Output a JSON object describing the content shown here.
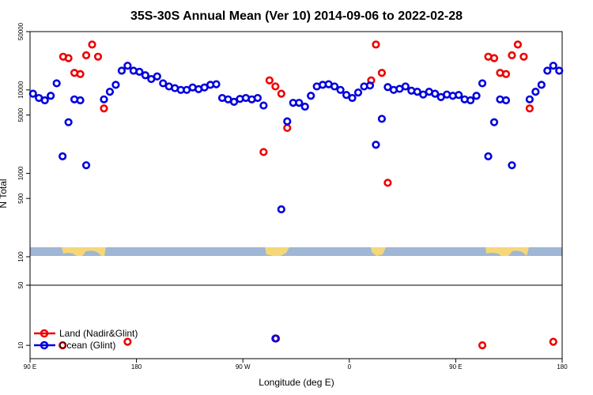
{
  "chart_data": {
    "type": "scatter",
    "title": "35S-30S Annual Mean (Ver 10)   2014-09-06 to 2022-02-28",
    "xlabel": "Longitude (deg E)",
    "ylabel": "N Total",
    "x_ticks": [
      {
        "value": 90,
        "label": "90 E"
      },
      {
        "value": 180,
        "label": "180"
      },
      {
        "value": 270,
        "label": "90 W"
      },
      {
        "value": 360,
        "label": "0"
      },
      {
        "value": 450,
        "label": "90 E"
      },
      {
        "value": 540,
        "label": "180"
      }
    ],
    "xlim": [
      90,
      540
    ],
    "upper_panel": {
      "scale": "log",
      "ylim": [
        100,
        50000
      ],
      "y_ticks": [
        {
          "value": 100,
          "label": "100"
        },
        {
          "value": 500,
          "label": "500"
        },
        {
          "value": 1000,
          "label": "1000"
        },
        {
          "value": 5000,
          "label": "5000"
        },
        {
          "value": 10000,
          "label": "10000"
        },
        {
          "value": 50000,
          "label": "50000"
        }
      ]
    },
    "lower_panel": {
      "scale": "log",
      "ylim": [
        7,
        50
      ],
      "y_ticks": [
        {
          "value": 10,
          "label": "10"
        },
        {
          "value": 50,
          "label": "50"
        }
      ]
    },
    "legend": {
      "position": "bottom-left"
    },
    "colors": {
      "land": "#ee0000",
      "ocean": "#0000dd",
      "land_band": "#f5d77a",
      "ocean_band": "#9fb6d4"
    },
    "series": [
      {
        "name": "Land (Nadir&Glint)",
        "color": "#ee0000",
        "points": [
          [
            117.5,
            10
          ],
          [
            118,
            25000
          ],
          [
            122.5,
            24000
          ],
          [
            127.5,
            16000
          ],
          [
            132.5,
            15500
          ],
          [
            137.5,
            26000
          ],
          [
            142.5,
            35000
          ],
          [
            147.5,
            25000
          ],
          [
            152.5,
            6000
          ],
          [
            172.5,
            11
          ],
          [
            287.5,
            1800
          ],
          [
            292.5,
            13000
          ],
          [
            297.5,
            11000
          ],
          [
            302.5,
            9000
          ],
          [
            307.5,
            3500
          ],
          [
            298,
            12
          ],
          [
            378.5,
            13000
          ],
          [
            382.5,
            35000
          ],
          [
            387.5,
            16000
          ],
          [
            392.5,
            770
          ],
          [
            472.5,
            10
          ],
          [
            477.5,
            25000
          ],
          [
            482.5,
            24000
          ],
          [
            487.5,
            16000
          ],
          [
            492.5,
            15500
          ],
          [
            497.5,
            26000
          ],
          [
            502.5,
            35000
          ],
          [
            507.5,
            25000
          ],
          [
            512.5,
            6000
          ],
          [
            532.5,
            11
          ]
        ]
      },
      {
        "name": "Ocean (Glint)",
        "color": "#0000dd",
        "points": [
          [
            92.5,
            9000
          ],
          [
            97.5,
            8000
          ],
          [
            102.5,
            7500
          ],
          [
            107.5,
            8500
          ],
          [
            112.5,
            12000
          ],
          [
            117.5,
            1600
          ],
          [
            122.5,
            4100
          ],
          [
            127.5,
            7700
          ],
          [
            132.5,
            7500
          ],
          [
            137.5,
            1250
          ],
          [
            152.5,
            7700
          ],
          [
            157.5,
            9500
          ],
          [
            162.5,
            11500
          ],
          [
            167.5,
            17000
          ],
          [
            172.5,
            19500
          ],
          [
            177.5,
            17000
          ],
          [
            182.5,
            16500
          ],
          [
            187.5,
            15000
          ],
          [
            192.5,
            13500
          ],
          [
            197.5,
            14500
          ],
          [
            202.5,
            12000
          ],
          [
            207.5,
            11000
          ],
          [
            212.5,
            10500
          ],
          [
            217.5,
            10000
          ],
          [
            222.5,
            10000
          ],
          [
            227.5,
            10700
          ],
          [
            232.5,
            10200
          ],
          [
            237.5,
            10700
          ],
          [
            242.5,
            11500
          ],
          [
            247.5,
            11700
          ],
          [
            252.5,
            8000
          ],
          [
            257.5,
            7700
          ],
          [
            262.5,
            7200
          ],
          [
            267.5,
            7800
          ],
          [
            272.5,
            8000
          ],
          [
            277.5,
            7700
          ],
          [
            282.5,
            8000
          ],
          [
            287.5,
            6500
          ],
          [
            297.5,
            12
          ],
          [
            302.5,
            370
          ],
          [
            307.5,
            4200
          ],
          [
            312.5,
            7000
          ],
          [
            317.5,
            7000
          ],
          [
            322.5,
            6300
          ],
          [
            327.5,
            8500
          ],
          [
            332.5,
            11000
          ],
          [
            337.5,
            11500
          ],
          [
            342.5,
            11700
          ],
          [
            347.5,
            11000
          ],
          [
            352.5,
            10000
          ],
          [
            357.5,
            8700
          ],
          [
            362.5,
            8000
          ],
          [
            367.5,
            9300
          ],
          [
            372.5,
            11000
          ],
          [
            377.5,
            11300
          ],
          [
            382.5,
            2200
          ],
          [
            387.5,
            4500
          ],
          [
            392.5,
            10800
          ],
          [
            397.5,
            10000
          ],
          [
            402.5,
            10300
          ],
          [
            407.5,
            11000
          ],
          [
            412.5,
            9800
          ],
          [
            417.5,
            9500
          ],
          [
            422.5,
            8800
          ],
          [
            427.5,
            9500
          ],
          [
            432.5,
            9000
          ],
          [
            437.5,
            8200
          ],
          [
            442.5,
            8800
          ],
          [
            447.5,
            8500
          ],
          [
            452.5,
            8700
          ],
          [
            457.5,
            7700
          ],
          [
            462.5,
            7500
          ],
          [
            467.5,
            8500
          ],
          [
            472.5,
            12000
          ],
          [
            477.5,
            1600
          ],
          [
            482.5,
            4100
          ],
          [
            487.5,
            7700
          ],
          [
            492.5,
            7500
          ],
          [
            497.5,
            1250
          ],
          [
            512.5,
            7700
          ],
          [
            517.5,
            9500
          ],
          [
            522.5,
            11500
          ],
          [
            527.5,
            17000
          ],
          [
            532.5,
            19500
          ],
          [
            537.5,
            17000
          ]
        ]
      }
    ]
  }
}
